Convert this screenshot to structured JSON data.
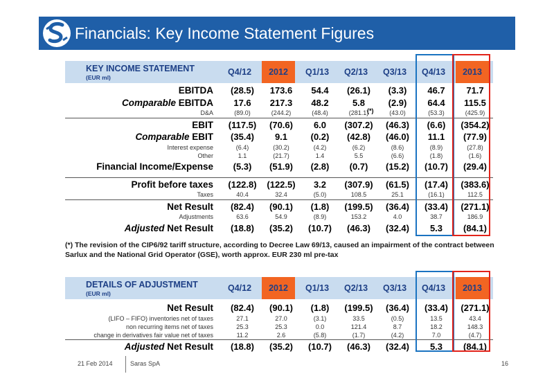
{
  "header": {
    "title": "Financials: Key Income Statement Figures"
  },
  "table1": {
    "title": "KEY INCOME STATEMENT",
    "unit": "(EUR ml)",
    "columns": [
      "Q4/12",
      "2012",
      "Q1/13",
      "Q2/13",
      "Q3/13",
      "Q4/13",
      "2013"
    ],
    "rows": [
      {
        "label": "EBITDA",
        "values": [
          "(28.5)",
          "173.6",
          "54.4",
          "(26.1)",
          "(3.3)",
          "46.7",
          "71.7"
        ]
      },
      {
        "label_em": "Comparable",
        "label": "EBITDA",
        "values": [
          "17.6",
          "217.3",
          "48.2",
          "5.8",
          "(2.9)",
          "64.4",
          "115.5"
        ]
      },
      {
        "label": "D&A",
        "values": [
          "(89.0)",
          "(244.2)",
          "(48.4)",
          "(281.1)",
          "(43.0)",
          "(53.3)",
          "(425.9)"
        ]
      },
      {
        "label": "EBIT",
        "values": [
          "(117.5)",
          "(70.6)",
          "6.0",
          "(307.2)",
          "(46.3)",
          "(6.6)",
          "(354.2)"
        ]
      },
      {
        "label_em": "Comparable",
        "label": "EBIT",
        "values": [
          "(35.4)",
          "9.1",
          "(0.2)",
          "(42.8)",
          "(46.0)",
          "11.1",
          "(77.9)"
        ]
      },
      {
        "label": "Interest expense",
        "values": [
          "(6.4)",
          "(30.2)",
          "(4.2)",
          "(6.2)",
          "(8.6)",
          "(8.9)",
          "(27.8)"
        ]
      },
      {
        "label": "Other",
        "values": [
          "1.1",
          "(21.7)",
          "1.4",
          "5.5",
          "(6.6)",
          "(1.8)",
          "(1.6)"
        ]
      },
      {
        "label": "Financial Income/Expense",
        "values": [
          "(5.3)",
          "(51.9)",
          "(2.8)",
          "(0.7)",
          "(15.2)",
          "(10.7)",
          "(29.4)"
        ]
      },
      {
        "label": "Profit before taxes",
        "values": [
          "(122.8)",
          "(122.5)",
          "3.2",
          "(307.9)",
          "(61.5)",
          "(17.4)",
          "(383.6)"
        ]
      },
      {
        "label": "Taxes",
        "values": [
          "40.4",
          "32.4",
          "(5.0)",
          "108.5",
          "25.1",
          "(16.1)",
          "112.5"
        ]
      },
      {
        "label": "Net Result",
        "values": [
          "(82.4)",
          "(90.1)",
          "(1.8)",
          "(199.5)",
          "(36.4)",
          "(33.4)",
          "(271.1)"
        ]
      },
      {
        "label": "Adjustments",
        "values": [
          "63.6",
          "54.9",
          "(8.9)",
          "153.2",
          "4.0",
          "38.7",
          "186.9"
        ]
      },
      {
        "label_em": "Adjusted",
        "label": "Net Result",
        "values": [
          "(18.8)",
          "(35.2)",
          "(10.7)",
          "(46.3)",
          "(32.4)",
          "5.3",
          "(84.1)"
        ]
      }
    ],
    "star": "(*)"
  },
  "note": "(*)  The revision of the CIP6/92 tariff structure, according to Decree Law 69/13, caused an impairment of the contract between Sarlux and the National Grid Operator (GSE), worth approx. EUR 230 ml pre-tax",
  "table2": {
    "title": "DETAILS OF ADJUSTMENT",
    "unit": "(EUR ml)",
    "columns": [
      "Q4/12",
      "2012",
      "Q1/13",
      "Q2/13",
      "Q3/13",
      "Q4/13",
      "2013"
    ],
    "rows": [
      {
        "label": "Net Result",
        "values": [
          "(82.4)",
          "(90.1)",
          "(1.8)",
          "(199.5)",
          "(36.4)",
          "(33.4)",
          "(271.1)"
        ]
      },
      {
        "label": "(LIFO – FIFO) inventories net of taxes",
        "values": [
          "27.1",
          "27.0",
          "(3.1)",
          "33.5",
          "(0.5)",
          "13.5",
          "43.4"
        ]
      },
      {
        "label": "non recurring items net of taxes",
        "values": [
          "25.3",
          "25.3",
          "0.0",
          "121.4",
          "8.7",
          "18.2",
          "148.3"
        ]
      },
      {
        "label": "change in derivatives fair value net of taxes",
        "values": [
          "11.2",
          "2.6",
          "(5.8)",
          "(1.7)",
          "(4.2)",
          "7.0",
          "(4.7)"
        ]
      },
      {
        "label_em": "Adjusted",
        "label": "Net Result",
        "values": [
          "(18.8)",
          "(35.2)",
          "(10.7)",
          "(46.3)",
          "(32.4)",
          "5.3",
          "(84.1)"
        ]
      }
    ]
  },
  "footer": {
    "date": "21 Feb 2014",
    "company": "Saras SpA",
    "page": "16"
  },
  "colors": {
    "header_blue": "#1f5fa8",
    "table_header": "#c9dcef",
    "orange": "#f26522",
    "blue_box": "#1a73c1",
    "red_box": "#e2231a"
  }
}
